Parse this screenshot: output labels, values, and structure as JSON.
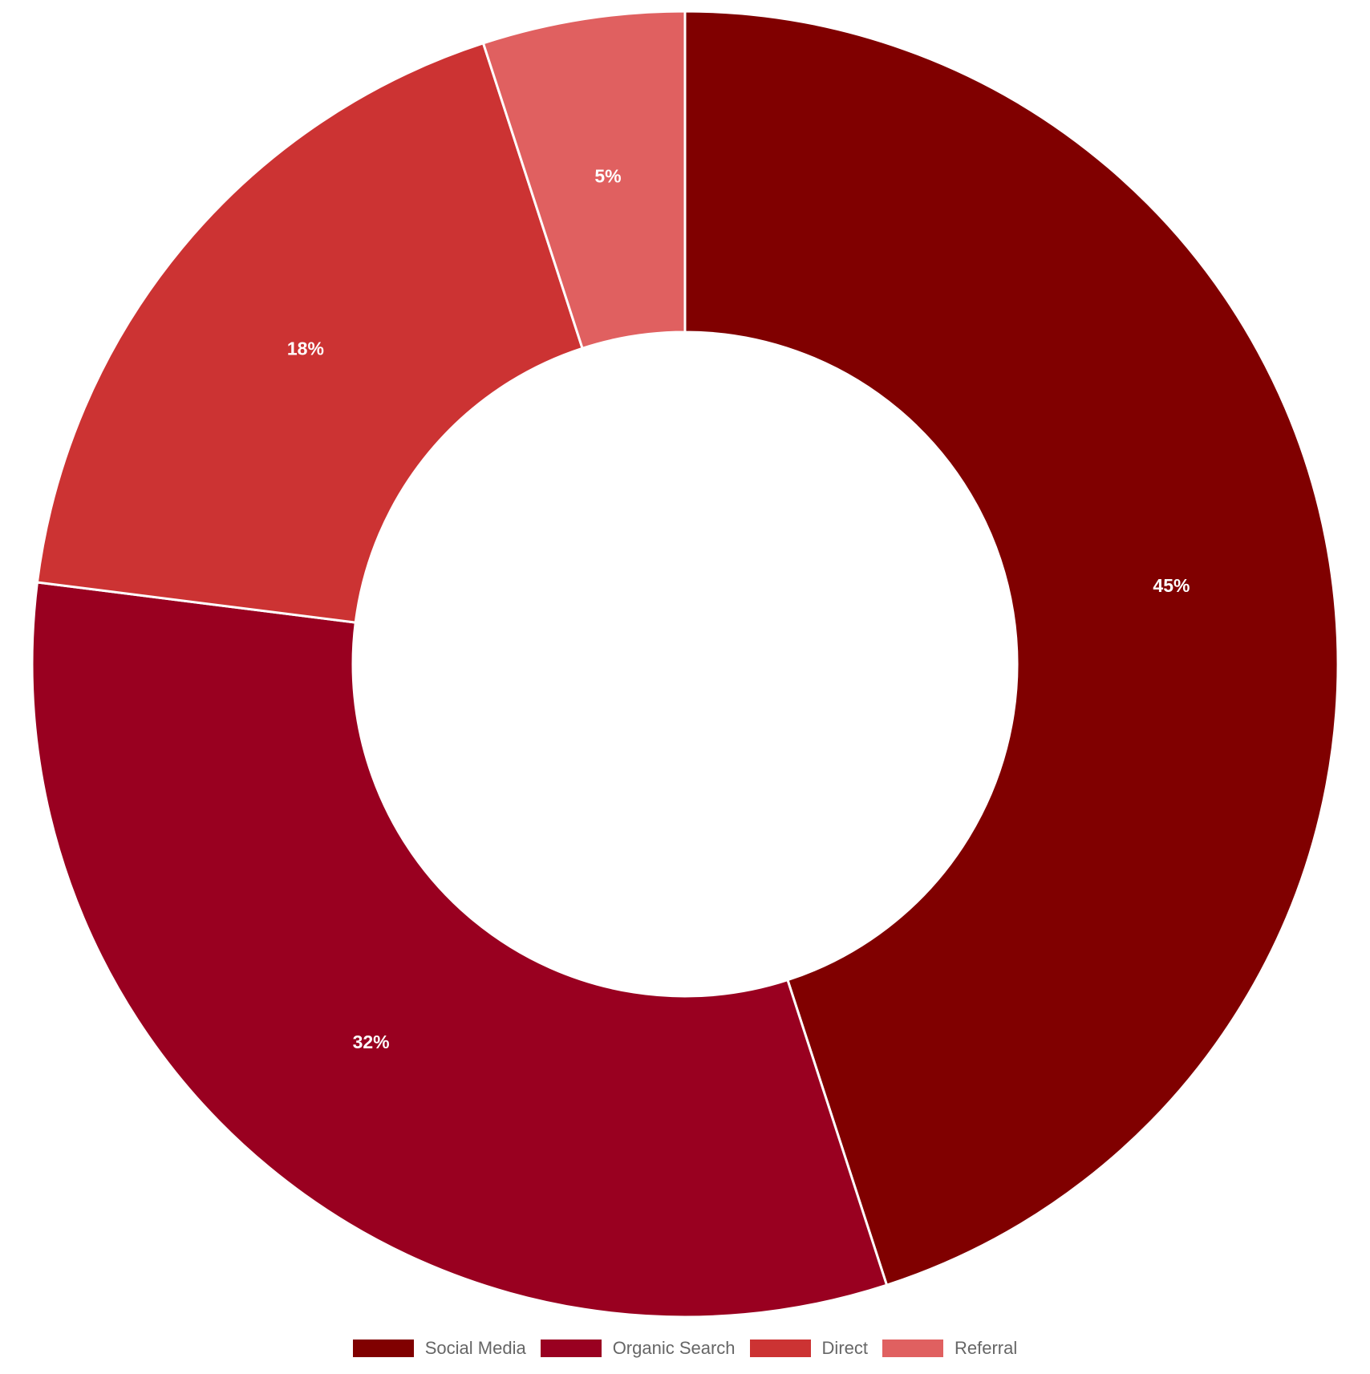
{
  "chart_data": {
    "type": "pie",
    "variant": "donut",
    "categories": [
      "Social Media",
      "Organic Search",
      "Direct",
      "Referral"
    ],
    "values": [
      45,
      32,
      18,
      5
    ],
    "labels": [
      "45%",
      "32%",
      "18%",
      "5%"
    ],
    "colors": [
      "#800000",
      "#990020",
      "#cc3333",
      "#e06060"
    ],
    "legend": "bottom",
    "start": "top, clockwise"
  },
  "legend": {
    "items": [
      {
        "label": "Social Media",
        "color": "#800000"
      },
      {
        "label": "Organic Search",
        "color": "#990020"
      },
      {
        "label": "Direct",
        "color": "#cc3333"
      },
      {
        "label": "Referral",
        "color": "#e06060"
      }
    ]
  }
}
